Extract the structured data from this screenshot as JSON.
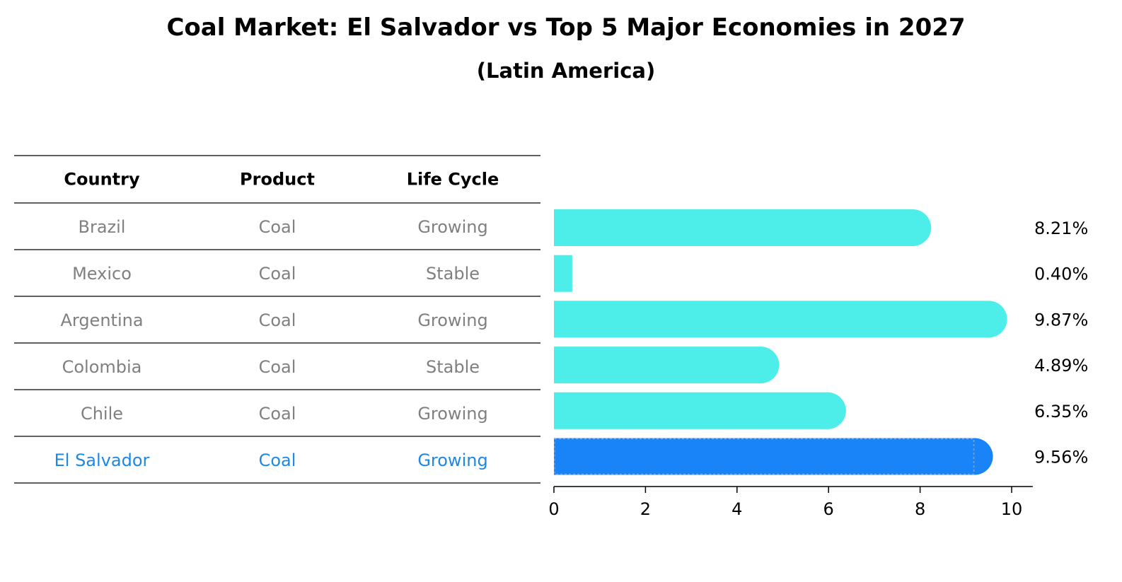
{
  "chart_data": {
    "type": "bar",
    "orientation": "horizontal",
    "title": "Coal Market: El Salvador vs Top 5 Major Economies in 2027",
    "subtitle": "(Latin America)",
    "table": {
      "headers": [
        "Country",
        "Product",
        "Life Cycle"
      ],
      "rows": [
        {
          "country": "Brazil",
          "product": "Coal",
          "life_cycle": "Growing"
        },
        {
          "country": "Mexico",
          "product": "Coal",
          "life_cycle": "Stable"
        },
        {
          "country": "Argentina",
          "product": "Coal",
          "life_cycle": "Growing"
        },
        {
          "country": "Colombia",
          "product": "Coal",
          "life_cycle": "Stable"
        },
        {
          "country": "Chile",
          "product": "Coal",
          "life_cycle": "Growing"
        },
        {
          "country": "El Salvador",
          "product": "Coal",
          "life_cycle": "Growing"
        }
      ]
    },
    "categories": [
      "Brazil",
      "Mexico",
      "Argentina",
      "Colombia",
      "Chile",
      "El Salvador"
    ],
    "values": [
      8.21,
      0.4,
      9.87,
      4.89,
      6.35,
      9.56
    ],
    "value_labels": [
      "8.21%",
      "0.40%",
      "9.87%",
      "4.89%",
      "6.35%",
      "9.56%"
    ],
    "highlight": "El Salvador",
    "xlim": [
      0,
      10.4
    ],
    "xticks": [
      0,
      2,
      4,
      6,
      8,
      10
    ],
    "xlabel": "",
    "ylabel": "",
    "colors": {
      "bar": "#4deeea",
      "highlight_bar": "#1884f7",
      "row_text": "#808080",
      "highlight_text": "#1e88e5",
      "rule": "#000000"
    }
  }
}
